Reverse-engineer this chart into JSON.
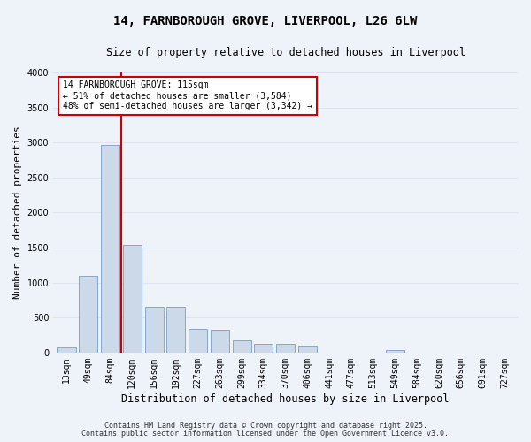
{
  "title_line1": "14, FARNBOROUGH GROVE, LIVERPOOL, L26 6LW",
  "title_line2": "Size of property relative to detached houses in Liverpool",
  "xlabel": "Distribution of detached houses by size in Liverpool",
  "ylabel": "Number of detached properties",
  "categories": [
    "13sqm",
    "49sqm",
    "84sqm",
    "120sqm",
    "156sqm",
    "192sqm",
    "227sqm",
    "263sqm",
    "299sqm",
    "334sqm",
    "370sqm",
    "406sqm",
    "441sqm",
    "477sqm",
    "513sqm",
    "549sqm",
    "584sqm",
    "620sqm",
    "656sqm",
    "691sqm",
    "727sqm"
  ],
  "values": [
    75,
    1100,
    2970,
    1540,
    660,
    650,
    340,
    330,
    175,
    130,
    130,
    100,
    0,
    0,
    0,
    30,
    0,
    0,
    0,
    0,
    0
  ],
  "bar_color": "#ccd9e8",
  "bar_edge_color": "#7a9dc7",
  "grid_color": "#dce6f2",
  "background_color": "#eef2f9",
  "property_line_x": 2.5,
  "property_line_color": "#cc0000",
  "annotation_text": "14 FARNBOROUGH GROVE: 115sqm\n← 51% of detached houses are smaller (3,584)\n48% of semi-detached houses are larger (3,342) →",
  "annotation_box_color": "#ffffff",
  "annotation_border_color": "#cc0000",
  "footer_line1": "Contains HM Land Registry data © Crown copyright and database right 2025.",
  "footer_line2": "Contains public sector information licensed under the Open Government Licence v3.0.",
  "ylim": [
    0,
    4000
  ],
  "yticks": [
    0,
    500,
    1000,
    1500,
    2000,
    2500,
    3000,
    3500,
    4000
  ],
  "title_fontsize": 10,
  "subtitle_fontsize": 8.5,
  "xlabel_fontsize": 8.5,
  "ylabel_fontsize": 8,
  "tick_fontsize": 7,
  "annotation_fontsize": 7,
  "footer_fontsize": 6
}
